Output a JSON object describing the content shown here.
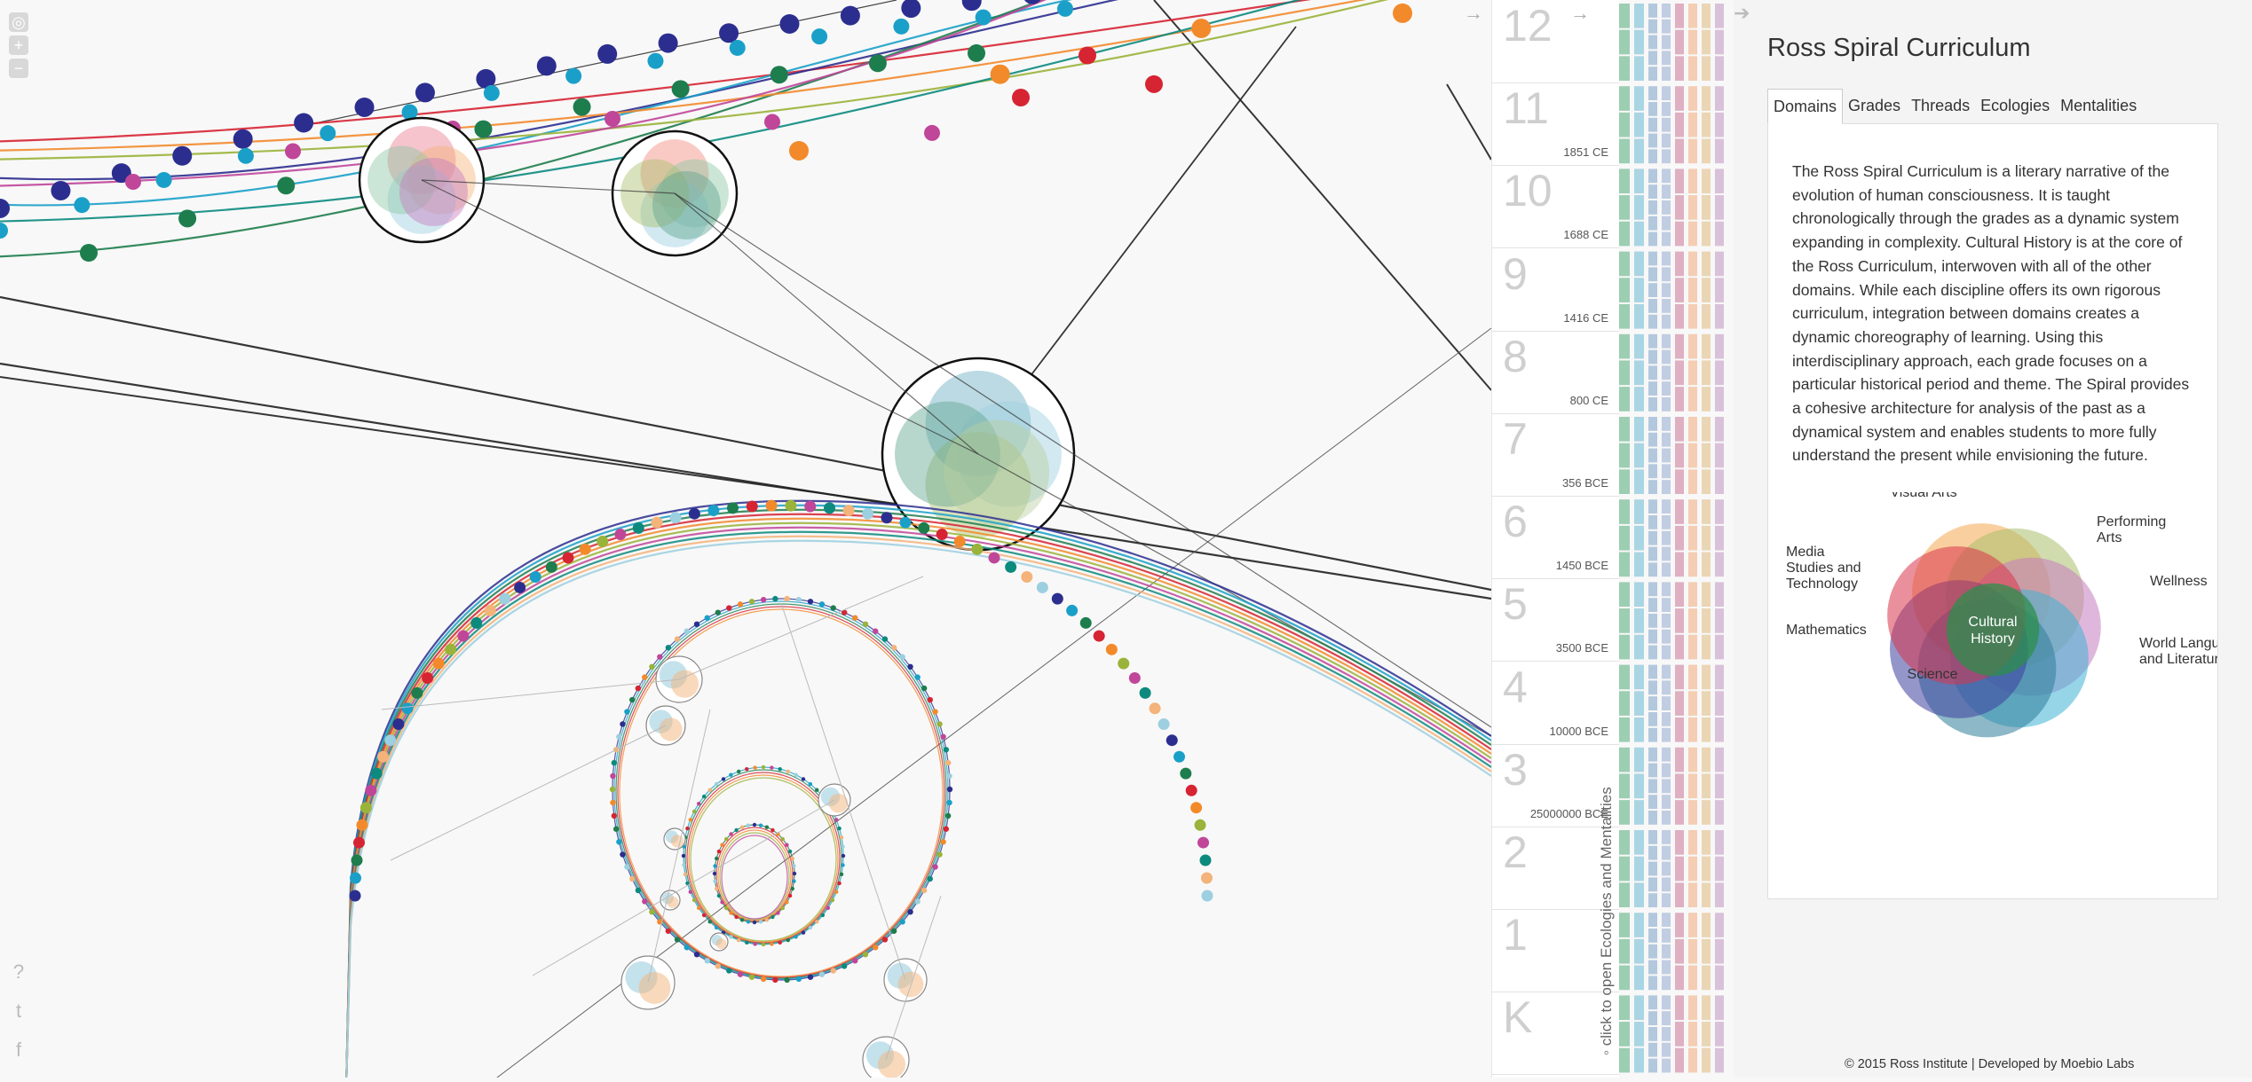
{
  "toolbar": {
    "icons": [
      "camera-icon",
      "zoom-in-icon",
      "zoom-out-icon"
    ],
    "zoom_in": "+",
    "zoom_out": "−"
  },
  "social": {
    "help": "?",
    "twitter": "t",
    "facebook": "f"
  },
  "grades": [
    {
      "num": "12",
      "date": ""
    },
    {
      "num": "11",
      "date": "1851 CE"
    },
    {
      "num": "10",
      "date": "1688 CE"
    },
    {
      "num": "9",
      "date": "1416 CE"
    },
    {
      "num": "8",
      "date": "800 CE"
    },
    {
      "num": "7",
      "date": "356 BCE"
    },
    {
      "num": "6",
      "date": "1450 BCE"
    },
    {
      "num": "5",
      "date": "3500 BCE"
    },
    {
      "num": "4",
      "date": "10000 BCE"
    },
    {
      "num": "3",
      "date": "25000000 BCE"
    },
    {
      "num": "2",
      "date": ""
    },
    {
      "num": "1",
      "date": ""
    },
    {
      "num": "K",
      "date": ""
    }
  ],
  "arrows": {
    "left": "→",
    "right": "→"
  },
  "vertical_hint": "click to open Ecologies and Mentalities",
  "strip_colors": [
    "#8cc7a5",
    "#9ccfdf",
    "#a7bfd8",
    "#b6c6de",
    "#d9a3b7",
    "#f3c6a7",
    "#e8cfa8",
    "#d3b9d3"
  ],
  "panel": {
    "title": "Ross Spiral Curriculum",
    "tabs": [
      "Domains",
      "Grades",
      "Threads",
      "Ecologies",
      "Mentalities"
    ],
    "active_tab": "Domains",
    "description": "The Ross Spiral Curriculum is a literary narrative of the evolution of human consciousness. It is taught chronologically through the grades as a dynamic system expanding in complexity. Cultural History is at the core of the Ross Curriculum, interwoven with all of the other domains. While each discipline offers its own rigorous curriculum, integration between domains creates a dynamic choreography of learning. Using this interdisciplinary approach, each grade focuses on a particular historical period and theme. The Spiral provides a cohesive architecture for analysis of the past as a dynamical system and enables students to more fully understand the present while envisioning the future.",
    "venn": {
      "center_line1": "Cultural",
      "center_line2": "History",
      "domains": [
        {
          "line1": "Visual Arts",
          "line2": "",
          "line3": "",
          "color": "#f5a750"
        },
        {
          "line1": "Performing",
          "line2": "Arts",
          "line3": "",
          "color": "#a9bf6c"
        },
        {
          "line1": "Wellness",
          "line2": "",
          "line3": "",
          "color": "#c77bbf"
        },
        {
          "line1": "World Languages",
          "line2": "and Literature",
          "line3": "",
          "color": "#3fb3d6"
        },
        {
          "line1": "Science",
          "line2": "",
          "line3": "",
          "color": "#2f7e99"
        },
        {
          "line1": "Mathematics",
          "line2": "",
          "line3": "",
          "color": "#3d3f9e"
        },
        {
          "line1": "Media",
          "line2": "Studies and",
          "line3": "Technology",
          "color": "#d9344a"
        }
      ],
      "center_color": "#2e8f4c"
    },
    "footer": "© 2015 Ross Institute | Developed by Moebio Labs"
  },
  "palette": [
    "#2c2e8f",
    "#1aa0c8",
    "#1e7d4d",
    "#d62433",
    "#f28a2c",
    "#9ab33a",
    "#c0469a",
    "#0c8a7e",
    "#e87c8f",
    "#6d9ec9"
  ]
}
